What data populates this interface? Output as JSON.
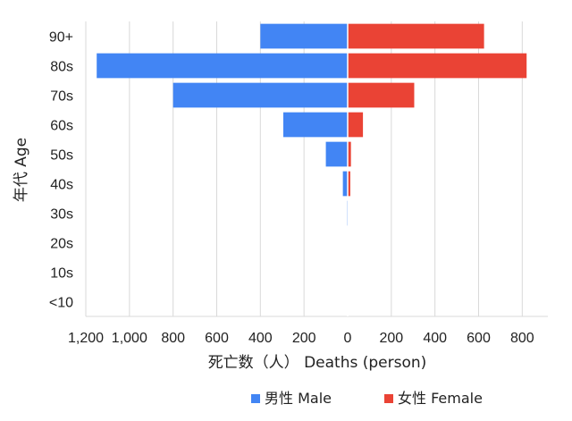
{
  "chart_data": {
    "type": "bar",
    "orientation": "horizontal-population-pyramid",
    "categories": [
      "90+",
      "80s",
      "70s",
      "60s",
      "50s",
      "40s",
      "30s",
      "20s",
      "10s",
      "<10"
    ],
    "series": [
      {
        "name": "男性 Male",
        "color": "#4285f4",
        "values": [
          400,
          1150,
          800,
          295,
          100,
          22,
          4,
          0,
          0,
          0
        ]
      },
      {
        "name": "女性 Female",
        "color": "#ea4335",
        "values": [
          625,
          820,
          305,
          70,
          15,
          12,
          2,
          0,
          0,
          0
        ]
      }
    ],
    "x_ticks": [
      "1,200",
      "1,000",
      "800",
      "600",
      "400",
      "200",
      "0",
      "200",
      "400",
      "600",
      "800"
    ],
    "xlim": [
      -1200,
      800
    ],
    "xlabel": "死亡数（人） Deaths (person)",
    "ylabel": "年代 Age",
    "grid": true,
    "legend_position": "bottom"
  }
}
